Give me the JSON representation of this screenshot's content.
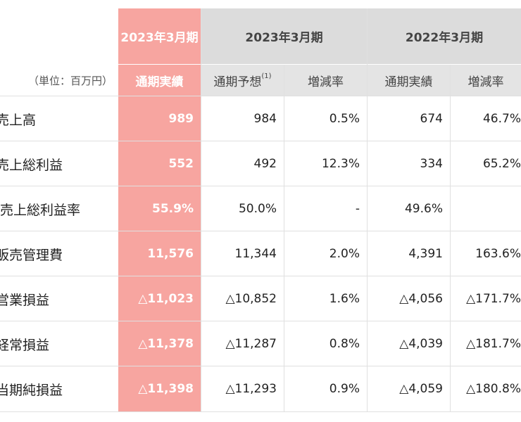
{
  "header": {
    "highlight_period": "2023年3月期",
    "period_2023": "2023年3月期",
    "period_2022": "2022年3月期",
    "unit": "（単位：百万円）",
    "highlight_sub": "通期実績",
    "sub_forecast": "通期予想",
    "sub_forecast_note": "(1)",
    "sub_rate_1": "増減率",
    "sub_actual_2022": "通期実績",
    "sub_rate_2": "増減率"
  },
  "rows": [
    {
      "label": "売上高",
      "actual": "989",
      "forecast": "984",
      "rate1": "0.5%",
      "prev": "674",
      "rate2": "46.7%"
    },
    {
      "label": "売上総利益",
      "actual": "552",
      "forecast": "492",
      "rate1": "12.3%",
      "prev": "334",
      "rate2": "65.2%"
    },
    {
      "label": "売上総利益率",
      "actual": "55.9%",
      "forecast": "50.0%",
      "rate1": "-",
      "prev": "49.6%",
      "rate2": ""
    },
    {
      "label": "販売管理費",
      "actual": "11,576",
      "forecast": "11,344",
      "rate1": "2.0%",
      "prev": "4,391",
      "rate2": "163.6%"
    },
    {
      "label": "営業損益",
      "actual": "△11,023",
      "forecast": "△10,852",
      "rate1": "1.6%",
      "prev": "△4,056",
      "rate2": "△171.7%"
    },
    {
      "label": "経常損益",
      "actual": "△11,378",
      "forecast": "△11,287",
      "rate1": "0.8%",
      "prev": "△4,039",
      "rate2": "△181.7%"
    },
    {
      "label": "当期純損益",
      "actual": "△11,398",
      "forecast": "△11,293",
      "rate1": "0.9%",
      "prev": "△4,059",
      "rate2": "△180.8%"
    }
  ],
  "colors": {
    "highlight": "#f7a5a0",
    "header_grey": "#dcdcdc",
    "sub_grey": "#e4e4e4"
  }
}
